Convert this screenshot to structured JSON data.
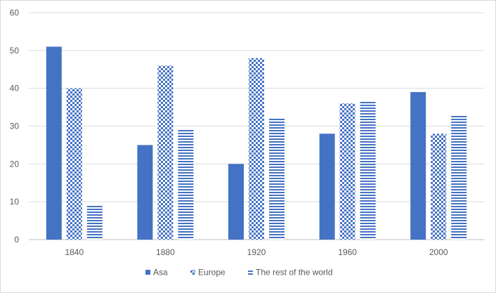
{
  "chart_data": {
    "type": "bar",
    "categories": [
      "1840",
      "1880",
      "1920",
      "1960",
      "2000"
    ],
    "series": [
      {
        "name": "Asa",
        "values": [
          51,
          25,
          20,
          28,
          39
        ],
        "pattern": "solid",
        "color": "#4472c4"
      },
      {
        "name": "Europe",
        "values": [
          40,
          46,
          48,
          36,
          28
        ],
        "pattern": "checker",
        "color": "#4472c4"
      },
      {
        "name": "The rest of the world",
        "values": [
          9,
          29,
          32,
          36.5,
          33
        ],
        "pattern": "horizontal-stripes",
        "color": "#4472c4"
      }
    ],
    "yticks": [
      "0",
      "10",
      "20",
      "30",
      "40",
      "50",
      "60"
    ],
    "title": "",
    "xlabel": "",
    "ylabel": "",
    "ylim": [
      0,
      60
    ],
    "grid": true,
    "legend_position": "bottom"
  }
}
